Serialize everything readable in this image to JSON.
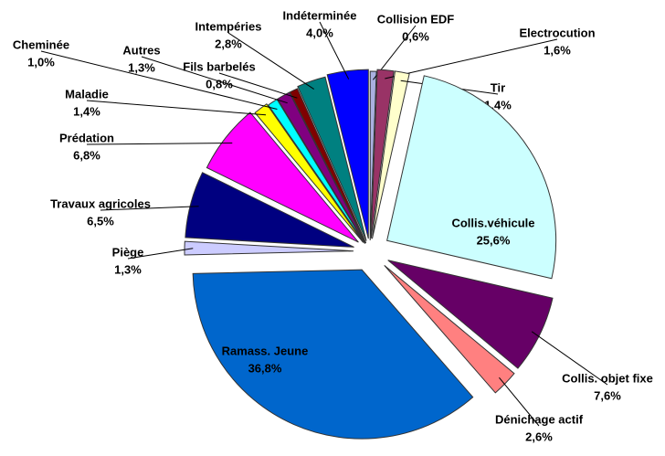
{
  "chart_data": {
    "type": "pie",
    "categories": [
      "Collision EDF",
      "Electrocution",
      "Tir",
      "Collis.véhicule",
      "Collis. objet fixe",
      "Dénichage actif",
      "Ramass. Jeune",
      "Piège",
      "Travaux agricoles",
      "Prédation",
      "Maladie",
      "Cheminée",
      "Autres",
      "Fils barbelés",
      "Intempéries",
      "Indéterminée"
    ],
    "values": [
      0.6,
      1.6,
      1.4,
      25.6,
      7.6,
      2.6,
      36.8,
      1.3,
      6.5,
      6.8,
      1.4,
      1.0,
      1.3,
      0.8,
      2.8,
      4.0
    ],
    "value_labels": [
      "0,6%",
      "1,6%",
      "1,4%",
      "25,6%",
      "7,6%",
      "2,6%",
      "36,8%",
      "1,3%",
      "6,5%",
      "6,8%",
      "1,4%",
      "1,0%",
      "1,3%",
      "0,8%",
      "2,8%",
      "4,0%"
    ],
    "colors": [
      "#aab0e0",
      "#993366",
      "#ffffcc",
      "#ccffff",
      "#660066",
      "#ff8080",
      "#0066cc",
      "#ccccff",
      "#000080",
      "#ff00ff",
      "#ffff00",
      "#00ffff",
      "#800080",
      "#800000",
      "#008080",
      "#0000ff"
    ]
  }
}
